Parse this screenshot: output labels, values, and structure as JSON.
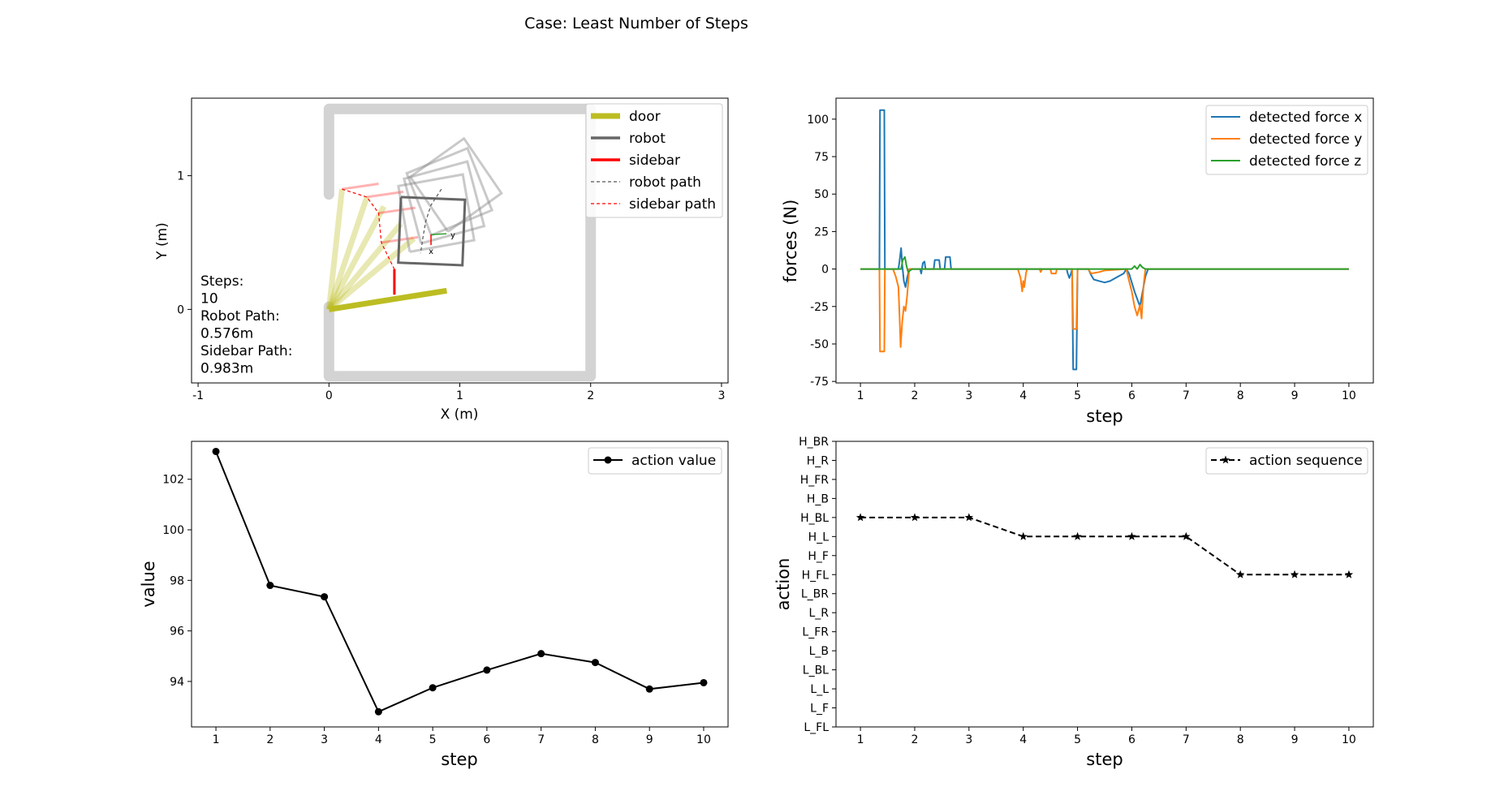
{
  "figure": {
    "suptitle": "Case: Least Number of Steps"
  },
  "chart_data": [
    {
      "type": "scatter",
      "id": "scene",
      "xlabel": "X (m)",
      "ylabel": "Y (m)",
      "xlim": [
        -1.05,
        3.05
      ],
      "ylim": [
        -0.55,
        1.58
      ],
      "xticks": [
        -1,
        0,
        1,
        2,
        3
      ],
      "yticks": [
        0,
        1
      ],
      "legend": {
        "position": "top-right",
        "entries": [
          {
            "label": "door",
            "color": "#bcbd22",
            "style": "solid-thick"
          },
          {
            "label": "robot",
            "color": "#666666",
            "style": "solid"
          },
          {
            "label": "sidebar",
            "color": "#ff0000",
            "style": "solid"
          },
          {
            "label": "robot path",
            "color": "#555555",
            "style": "dashed"
          },
          {
            "label": "sidebar path",
            "color": "#ff0000",
            "style": "dashed"
          }
        ]
      },
      "info_text": [
        "Steps:",
        "10",
        "Robot Path:",
        "0.576m",
        "Sidebar Path:",
        "0.983m"
      ],
      "walls": [
        [
          0,
          0.86
        ],
        [
          0,
          1.5
        ],
        [
          2.0,
          1.5
        ],
        [
          2.0,
          -0.5
        ],
        [
          0,
          -0.5
        ],
        [
          0,
          0.02
        ]
      ],
      "door_hinge": [
        0,
        0.0
      ],
      "door_positions_faded": [
        [
          0.1,
          0.9
        ],
        [
          0.29,
          0.84
        ],
        [
          0.42,
          0.77
        ],
        [
          0.55,
          0.64
        ],
        [
          0.65,
          0.53
        ]
      ],
      "door_final": [
        0.9,
        0.14
      ],
      "sidebar_tips_faded": [
        [
          0.1,
          0.9
        ],
        [
          0.29,
          0.84
        ],
        [
          0.42,
          0.77
        ],
        [
          0.55,
          0.64
        ],
        [
          0.65,
          0.53
        ]
      ],
      "sidebar_path": [
        [
          0.1,
          0.9
        ],
        [
          0.29,
          0.84
        ],
        [
          0.38,
          0.72
        ],
        [
          0.4,
          0.5
        ],
        [
          0.5,
          0.3
        ],
        [
          0.5,
          0.11
        ]
      ],
      "robot_path": [
        [
          0.86,
          0.9
        ],
        [
          0.78,
          0.78
        ],
        [
          0.74,
          0.66
        ],
        [
          0.72,
          0.55
        ],
        [
          0.7,
          0.42
        ]
      ],
      "robot_ghosts": [
        {
          "center": [
            0.97,
            0.93
          ],
          "angle": 35
        },
        {
          "center": [
            0.92,
            0.88
          ],
          "angle": 22
        },
        {
          "center": [
            0.88,
            0.8
          ],
          "angle": 15
        },
        {
          "center": [
            0.82,
            0.72
          ],
          "angle": 10
        }
      ],
      "robot_final": {
        "corners": [
          [
            0.55,
            0.84
          ],
          [
            1.04,
            0.82
          ],
          [
            1.02,
            0.33
          ],
          [
            0.53,
            0.35
          ]
        ]
      },
      "robot_frame": {
        "origin": [
          0.78,
          0.56
        ],
        "x_label": "x",
        "y_label": "y"
      }
    },
    {
      "type": "line",
      "id": "forces",
      "xlabel": "step",
      "ylabel": "forces (N)",
      "xlim": [
        0.55,
        10.45
      ],
      "ylim": [
        -76,
        114
      ],
      "xticks": [
        1,
        2,
        3,
        4,
        5,
        6,
        7,
        8,
        9,
        10
      ],
      "yticks": [
        -75,
        -50,
        -25,
        0,
        25,
        50,
        75,
        100
      ],
      "legend": {
        "position": "top-right"
      },
      "series": [
        {
          "name": "detected force x",
          "color": "#1f77b4",
          "points": [
            [
              1,
              0
            ],
            [
              1.35,
              0
            ],
            [
              1.36,
              106
            ],
            [
              1.44,
              106
            ],
            [
              1.45,
              0
            ],
            [
              1.7,
              0
            ],
            [
              1.72,
              5
            ],
            [
              1.75,
              14
            ],
            [
              1.77,
              3
            ],
            [
              1.8,
              -8
            ],
            [
              1.83,
              -12
            ],
            [
              1.86,
              -6
            ],
            [
              1.9,
              0
            ],
            [
              2.1,
              0
            ],
            [
              2.12,
              -3
            ],
            [
              2.15,
              4
            ],
            [
              2.18,
              5
            ],
            [
              2.2,
              0
            ],
            [
              2.35,
              0
            ],
            [
              2.37,
              6
            ],
            [
              2.45,
              6
            ],
            [
              2.47,
              0
            ],
            [
              2.55,
              0
            ],
            [
              2.57,
              8
            ],
            [
              2.65,
              8
            ],
            [
              2.67,
              0
            ],
            [
              4.8,
              0
            ],
            [
              4.82,
              -3
            ],
            [
              4.85,
              -6
            ],
            [
              4.88,
              -3
            ],
            [
              4.9,
              0
            ],
            [
              4.92,
              -67
            ],
            [
              4.98,
              -67
            ],
            [
              5.0,
              0
            ],
            [
              5.2,
              0
            ],
            [
              5.25,
              -4
            ],
            [
              5.3,
              -7
            ],
            [
              5.4,
              -8
            ],
            [
              5.5,
              -9
            ],
            [
              5.6,
              -8
            ],
            [
              5.75,
              -5
            ],
            [
              5.85,
              -3
            ],
            [
              5.9,
              0
            ],
            [
              5.95,
              -3
            ],
            [
              6.0,
              -9
            ],
            [
              6.05,
              -15
            ],
            [
              6.1,
              -20
            ],
            [
              6.15,
              -25
            ],
            [
              6.2,
              -15
            ],
            [
              6.25,
              -5
            ],
            [
              6.3,
              0
            ],
            [
              10,
              0
            ]
          ]
        },
        {
          "name": "detected force y",
          "color": "#ff7f0e",
          "points": [
            [
              1,
              0
            ],
            [
              1.35,
              0
            ],
            [
              1.36,
              -55
            ],
            [
              1.44,
              -55
            ],
            [
              1.45,
              0
            ],
            [
              1.6,
              0
            ],
            [
              1.65,
              -5
            ],
            [
              1.7,
              -12
            ],
            [
              1.72,
              -30
            ],
            [
              1.74,
              -52
            ],
            [
              1.77,
              -35
            ],
            [
              1.8,
              -25
            ],
            [
              1.83,
              -28
            ],
            [
              1.86,
              -18
            ],
            [
              1.9,
              0
            ],
            [
              3.9,
              0
            ],
            [
              3.95,
              -6
            ],
            [
              3.98,
              -15
            ],
            [
              4.0,
              -8
            ],
            [
              4.02,
              -12
            ],
            [
              4.05,
              -3
            ],
            [
              4.07,
              0
            ],
            [
              4.3,
              0
            ],
            [
              4.32,
              -2
            ],
            [
              4.35,
              0
            ],
            [
              4.5,
              0
            ],
            [
              4.52,
              -3
            ],
            [
              4.6,
              -3
            ],
            [
              4.62,
              0
            ],
            [
              4.9,
              0
            ],
            [
              4.92,
              -40
            ],
            [
              4.98,
              -40
            ],
            [
              5.0,
              0
            ],
            [
              5.2,
              0
            ],
            [
              5.25,
              -3
            ],
            [
              5.4,
              -2
            ],
            [
              5.5,
              -1
            ],
            [
              5.9,
              0
            ],
            [
              5.95,
              -8
            ],
            [
              6.0,
              -15
            ],
            [
              6.05,
              -25
            ],
            [
              6.1,
              -31
            ],
            [
              6.15,
              -24
            ],
            [
              6.18,
              -33
            ],
            [
              6.2,
              -20
            ],
            [
              6.22,
              -10
            ],
            [
              6.25,
              0
            ],
            [
              10,
              0
            ]
          ]
        },
        {
          "name": "detected force z",
          "color": "#2ca02c",
          "points": [
            [
              1,
              0
            ],
            [
              1.75,
              0
            ],
            [
              1.78,
              6
            ],
            [
              1.82,
              8
            ],
            [
              1.85,
              2
            ],
            [
              1.88,
              -2
            ],
            [
              1.95,
              0
            ],
            [
              6.0,
              0
            ],
            [
              6.05,
              2
            ],
            [
              6.1,
              0
            ],
            [
              6.15,
              3
            ],
            [
              6.2,
              1
            ],
            [
              6.25,
              0
            ],
            [
              10,
              0
            ]
          ]
        }
      ]
    },
    {
      "type": "line",
      "id": "values",
      "xlabel": "step",
      "ylabel": "value",
      "xlim": [
        0.55,
        10.45
      ],
      "ylim": [
        92.2,
        103.5
      ],
      "xticks": [
        1,
        2,
        3,
        4,
        5,
        6,
        7,
        8,
        9,
        10
      ],
      "yticks": [
        94,
        96,
        98,
        100,
        102
      ],
      "legend": {
        "position": "top-right"
      },
      "series": [
        {
          "name": "action value",
          "color": "#000000",
          "marker": "circle",
          "x": [
            1,
            2,
            3,
            4,
            5,
            6,
            7,
            8,
            9,
            10
          ],
          "values": [
            103.1,
            97.8,
            97.35,
            92.8,
            93.75,
            94.45,
            95.1,
            94.75,
            93.7,
            93.95
          ]
        }
      ]
    },
    {
      "type": "line",
      "id": "actions",
      "xlabel": "step",
      "ylabel": "action",
      "xlim": [
        0.55,
        10.45
      ],
      "ylim": [
        0,
        15
      ],
      "xticks": [
        1,
        2,
        3,
        4,
        5,
        6,
        7,
        8,
        9,
        10
      ],
      "ycategories": [
        "L_FL",
        "L_F",
        "L_L",
        "L_BL",
        "L_B",
        "L_FR",
        "L_R",
        "L_BR",
        "H_FL",
        "H_F",
        "H_L",
        "H_BL",
        "H_B",
        "H_FR",
        "H_R",
        "H_BR"
      ],
      "legend": {
        "position": "top-right"
      },
      "series": [
        {
          "name": "action sequence",
          "color": "#000000",
          "marker": "star",
          "style": "dashed",
          "x": [
            1,
            2,
            3,
            4,
            5,
            6,
            7,
            8,
            9,
            10
          ],
          "values": [
            "H_BL",
            "H_BL",
            "H_BL",
            "H_L",
            "H_L",
            "H_L",
            "H_L",
            "H_FL",
            "H_FL",
            "H_FL"
          ]
        }
      ]
    }
  ]
}
